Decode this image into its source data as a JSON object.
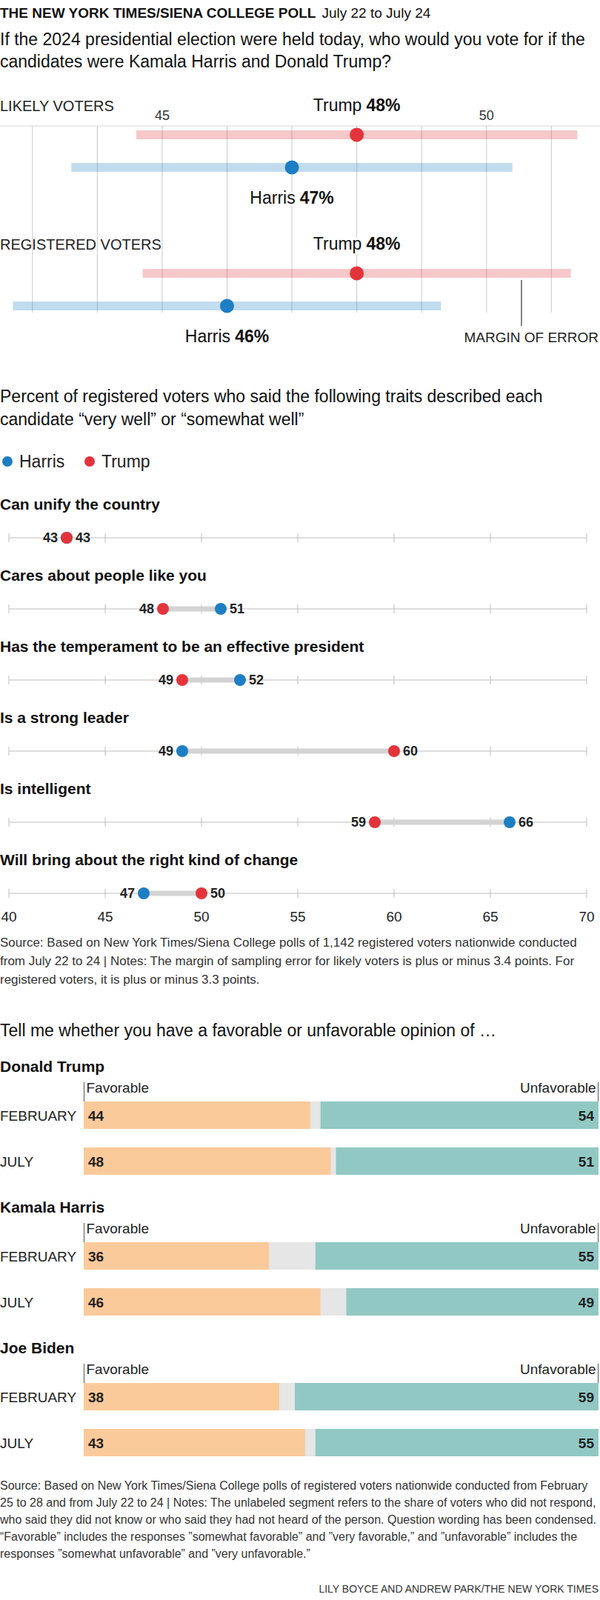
{
  "header": {
    "title": "THE NEW YORK TIMES/SIENA COLLEGE POLL",
    "date": "July 22 to July 24"
  },
  "chart_data": [
    {
      "type": "dot",
      "title": "If the 2024 presidential election were held today, who would you vote for if the candidates were Kamala Harris and Donald Trump?",
      "orientation": "horizontal",
      "categories": [
        "LIKELY VOTERS",
        "REGISTERED VOTERS"
      ],
      "series": [
        {
          "name": "Trump",
          "color": "#e3343b",
          "values": [
            48,
            48
          ],
          "error": [
            3.4,
            3.3
          ],
          "value_labels": [
            "48%",
            "48%"
          ]
        },
        {
          "name": "Harris",
          "color": "#1d7ec3",
          "values": [
            47,
            46
          ],
          "error": [
            3.4,
            3.3
          ],
          "value_labels": [
            "47%",
            "46%"
          ]
        }
      ],
      "xlim": [
        42.5,
        51.75
      ],
      "xticks": [
        {
          "value": 43,
          "label": null
        },
        {
          "value": 44,
          "label": null
        },
        45,
        {
          "value": 46,
          "label": null
        },
        {
          "value": 47,
          "label": null
        },
        {
          "value": 48,
          "label": null
        },
        {
          "value": 49,
          "label": null
        },
        50,
        {
          "value": 51,
          "label": null
        }
      ],
      "grid": true,
      "data_labels": true,
      "annotations": [
        "MARGIN OF ERROR"
      ]
    },
    {
      "type": "dot",
      "title": "Percent of registered voters who said the following traits described each candidate “very well” or “somewhat well”",
      "orientation": "horizontal",
      "categories": [
        "Can unify the country",
        "Cares about people like you",
        "Has the temperament to be an effective president",
        "Is a strong leader",
        "Is intelligent",
        "Will bring about the right kind of change"
      ],
      "series": [
        {
          "name": "Harris",
          "color": "#1d7ec3",
          "values": [
            43,
            51,
            52,
            49,
            66,
            47
          ]
        },
        {
          "name": "Trump",
          "color": "#e3343b",
          "values": [
            43,
            48,
            49,
            60,
            59,
            50
          ]
        }
      ],
      "xlim": [
        40,
        70
      ],
      "xticks": [
        40,
        45,
        50,
        55,
        60,
        65,
        70
      ],
      "legend": "top-left",
      "data_labels": true,
      "source": "Source: Based on New York Times/Siena College polls of 1,142 registered voters nationwide conducted from July 22 to 24 | Notes: The margin of sampling error for likely voters is plus or minus 3.4 points. For registered voters, it is plus or minus 3.3 points."
    },
    {
      "type": "bar",
      "title": "Tell me whether you have a favorable or unfavorable opinion of …",
      "orientation": "horizontal",
      "stacked": true,
      "data_labels": true,
      "tick_labels": false,
      "xlim": [
        0,
        100
      ],
      "groups": [
        {
          "title": "Donald Trump",
          "categories": [
            "FEBRUARY",
            "JULY"
          ],
          "series": [
            {
              "name": "Favorable",
              "color": "#fbca9b",
              "values": [
                44,
                48
              ]
            },
            {
              "name": "Unfavorable",
              "color": "#92c8c3",
              "values": [
                54,
                51
              ]
            }
          ]
        },
        {
          "title": "Kamala Harris",
          "categories": [
            "FEBRUARY",
            "JULY"
          ],
          "series": [
            {
              "name": "Favorable",
              "color": "#fbca9b",
              "values": [
                36,
                46
              ]
            },
            {
              "name": "Unfavorable",
              "color": "#92c8c3",
              "values": [
                55,
                49
              ]
            }
          ]
        },
        {
          "title": "Joe Biden",
          "categories": [
            "FEBRUARY",
            "JULY"
          ],
          "series": [
            {
              "name": "Favorable",
              "color": "#fbca9b",
              "values": [
                38,
                43
              ]
            },
            {
              "name": "Unfavorable",
              "color": "#92c8c3",
              "values": [
                59,
                55
              ]
            }
          ]
        }
      ],
      "source": "Source: Based on New York Times/Siena College polls of registered voters nationwide conducted from February 25 to 28 and from July 22 to 24 | Notes: The unlabeled segment refers to the share of voters who did not respond, who said they did not know or who said they had not heard of the person. Question wording has been condensed. “Favorable” includes the responses ”somewhat favorable” and ”very favorable,” and ”unfavorable” includes the responses ”somewhat unfavorable” and ”very unfavorable.”"
    }
  ],
  "credit": "LILY BOYCE AND ANDREW PARK/THE NEW YORK TIMES"
}
